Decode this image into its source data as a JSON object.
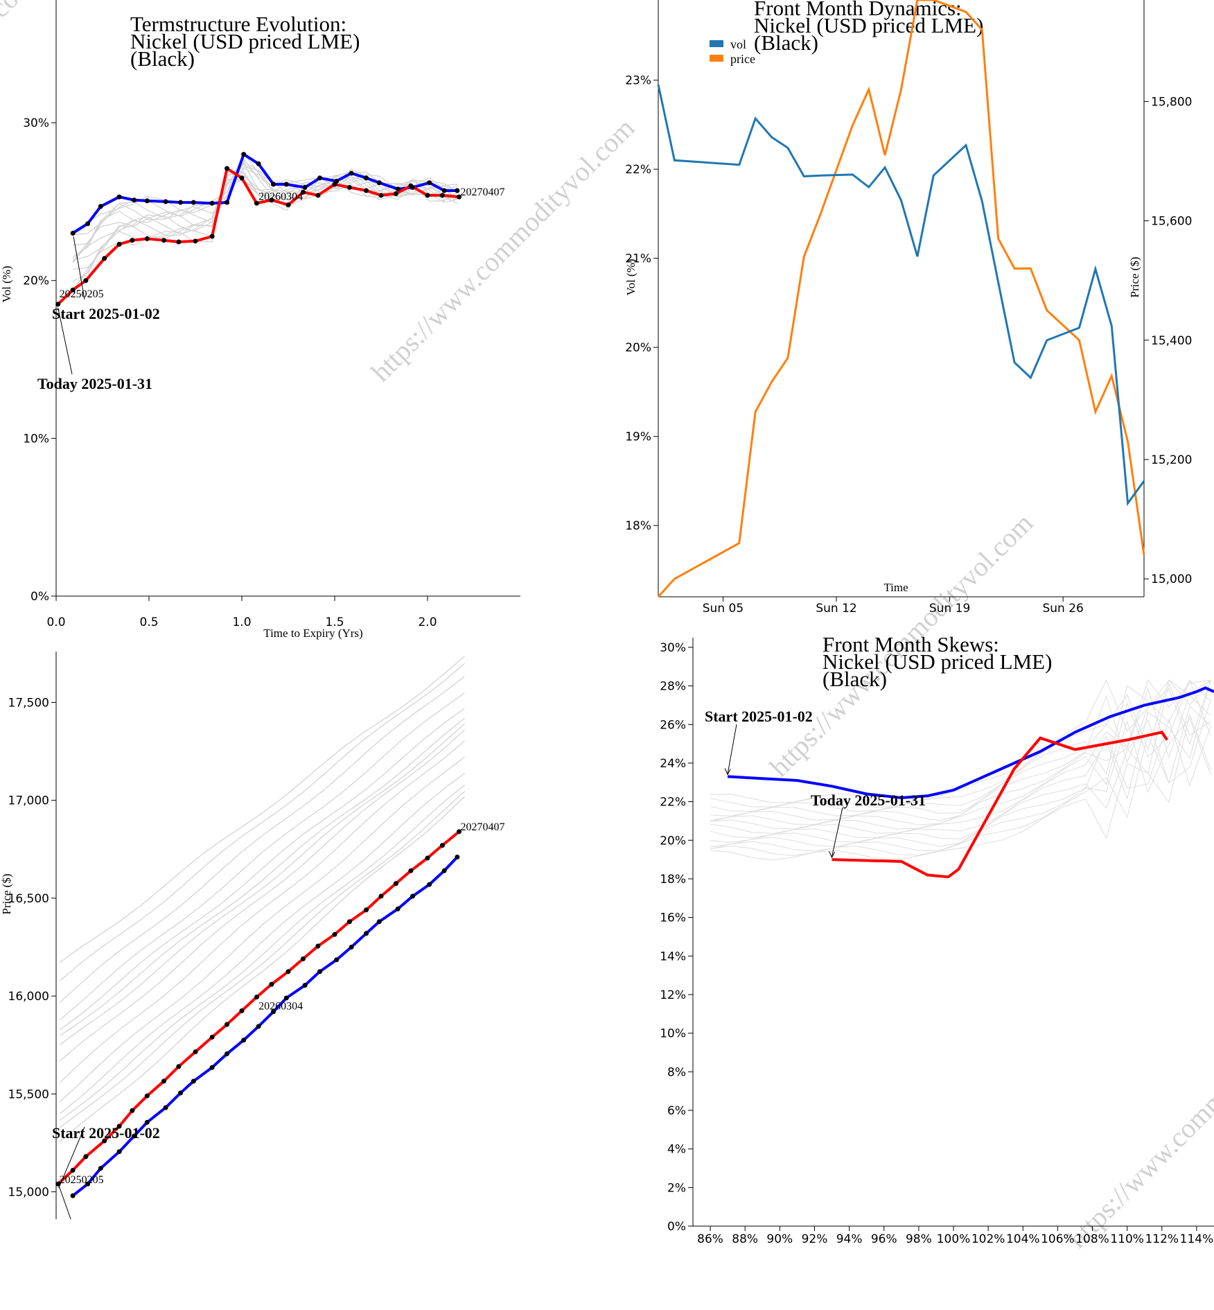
{
  "watermark": "https://www.commodityvol.com",
  "charts": {
    "termstructure": {
      "title": [
        "Termstructure Evolution:",
        "Nickel (USD priced LME)",
        "(Black)"
      ],
      "xlabel": "Time to Expiry (Yrs)",
      "ylabel": "Vol (%)",
      "xlim": [
        0,
        2.5
      ],
      "ylim": [
        0,
        38
      ],
      "xticks": [
        "0.0",
        "0.5",
        "1.0",
        "1.5",
        "2.0"
      ],
      "yticks": [
        "0%",
        "10%",
        "20%",
        "30%"
      ],
      "annotations": {
        "start": "Start 2025-01-02",
        "today": "Today 2025-01-31"
      },
      "expiry_labels": [
        "20250205",
        "20260304",
        "20270407"
      ],
      "colors": {
        "start": "#0000ff",
        "today": "#ff0000",
        "history": "#d3d3d3",
        "marker": "#000000"
      }
    },
    "front_month": {
      "title": [
        "Front Month Dynamics:",
        "Nickel (USD priced LME)",
        "(Black)"
      ],
      "xlabel": "Time",
      "ylabel_left": "Vol (%)",
      "ylabel_right": "Price ($)",
      "xticks": [
        "Sun 05",
        "Sun 12",
        "Sun 19",
        "Sun 26"
      ],
      "yticks_left": [
        "18%",
        "19%",
        "20%",
        "21%",
        "22%",
        "23%"
      ],
      "yticks_right": [
        "15,000",
        "15,200",
        "15,400",
        "15,600",
        "15,800"
      ],
      "legend": [
        "vol",
        "price"
      ],
      "colors": {
        "vol": "#1f77b4",
        "price": "#ff7f0e"
      }
    },
    "price_curve": {
      "ylabel": "Price ($)",
      "yticks": [
        "15,000",
        "15,500",
        "16,000",
        "16,500",
        "17,000",
        "17,500"
      ],
      "annotations": {
        "start": "Start 2025-01-02"
      },
      "expiry_labels": [
        "20250205",
        "20260304",
        "20270407"
      ]
    },
    "skews": {
      "title": [
        "Front Month Skews:",
        "Nickel (USD priced LME)",
        "(Black)"
      ],
      "xticks": [
        "86%",
        "88%",
        "90%",
        "92%",
        "94%",
        "96%",
        "98%",
        "100%",
        "102%",
        "104%",
        "106%",
        "108%",
        "110%",
        "112%",
        "114%"
      ],
      "yticks": [
        "0%",
        "2%",
        "4%",
        "6%",
        "8%",
        "10%",
        "12%",
        "14%",
        "16%",
        "18%",
        "20%",
        "22%",
        "24%",
        "26%",
        "28%",
        "30%"
      ],
      "annotations": {
        "start": "Start 2025-01-02",
        "today": "Today 2025-01-31"
      }
    }
  },
  "chart_data": [
    {
      "type": "line",
      "title": "Termstructure Evolution: Nickel (USD priced LME) (Black)",
      "xlabel": "Time to Expiry (Yrs)",
      "ylabel": "Vol (%)",
      "xlim": [
        0,
        2.5
      ],
      "ylim": [
        0,
        38
      ],
      "series": [
        {
          "name": "Start 2025-01-02",
          "x": [
            0.09,
            0.17,
            0.24,
            0.34,
            0.42,
            0.49,
            0.59,
            0.67,
            0.74,
            0.84,
            0.92,
            1.01,
            1.09,
            1.17,
            1.24,
            1.34,
            1.42,
            1.51,
            1.59,
            1.67,
            1.74,
            1.84,
            1.92,
            2.01,
            2.09,
            2.16
          ],
          "y": [
            23.0,
            23.6,
            24.7,
            25.3,
            25.1,
            25.05,
            25.0,
            24.95,
            24.95,
            24.9,
            24.95,
            28.0,
            27.4,
            26.1,
            26.1,
            25.9,
            26.5,
            26.3,
            26.8,
            26.5,
            26.2,
            25.8,
            25.9,
            26.2,
            25.7,
            25.7
          ]
        },
        {
          "name": "Today 2025-01-31",
          "x": [
            0.01,
            0.09,
            0.16,
            0.26,
            0.34,
            0.41,
            0.49,
            0.58,
            0.66,
            0.75,
            0.84,
            0.92,
            1.0,
            1.08,
            1.16,
            1.25,
            1.33,
            1.41,
            1.5,
            1.58,
            1.67,
            1.75,
            1.83,
            1.91,
            2.0,
            2.08,
            2.17
          ],
          "y": [
            18.5,
            19.4,
            20.0,
            21.4,
            22.3,
            22.55,
            22.65,
            22.55,
            22.45,
            22.5,
            22.8,
            27.1,
            26.5,
            24.9,
            25.1,
            24.8,
            25.6,
            25.4,
            26.1,
            25.9,
            25.7,
            25.4,
            25.5,
            26.0,
            25.4,
            25.4,
            25.3
          ]
        }
      ],
      "expiry_labels": [
        "20250205",
        "20260304",
        "20270407"
      ]
    },
    {
      "type": "line",
      "title": "Front Month Dynamics: Nickel (USD priced LME) (Black)",
      "xlabel": "Time",
      "ylabel": "Vol (%)",
      "ylabel_right": "Price ($)",
      "x": [
        "2025-01-01",
        "2025-01-02",
        "2025-01-06",
        "2025-01-07",
        "2025-01-08",
        "2025-01-09",
        "2025-01-10",
        "2025-01-11",
        "2025-01-13",
        "2025-01-14",
        "2025-01-15",
        "2025-01-16",
        "2025-01-17",
        "2025-01-18",
        "2025-01-20",
        "2025-01-21",
        "2025-01-22",
        "2025-01-23",
        "2025-01-24",
        "2025-01-25",
        "2025-01-27",
        "2025-01-28",
        "2025-01-29",
        "2025-01-30",
        "2025-01-31"
      ],
      "series": [
        {
          "name": "vol",
          "axis": "left",
          "values": [
            22.95,
            22.1,
            22.05,
            22.57,
            22.36,
            22.24,
            21.92,
            21.93,
            21.94,
            21.8,
            22.02,
            21.65,
            21.02,
            21.93,
            22.27,
            21.64,
            20.73,
            19.83,
            19.66,
            20.08,
            20.22,
            20.88,
            20.24,
            18.25,
            18.5
          ]
        },
        {
          "name": "price",
          "axis": "right",
          "values": [
            14970,
            15000,
            15060,
            15280,
            15330,
            15370,
            15540,
            15610,
            15760,
            15820,
            15710,
            15820,
            15970,
            15970,
            15950,
            15920,
            15570,
            15520,
            15520,
            15450,
            15400,
            15280,
            15340,
            15230,
            15040
          ]
        }
      ],
      "ylim_left": [
        17.2,
        23.9
      ],
      "ylim_right": [
        14970,
        15970
      ]
    },
    {
      "type": "line",
      "ylabel": "Price ($)",
      "ylim": [
        14860,
        17760
      ],
      "series": [
        {
          "name": "Start 2025-01-02",
          "x": [
            0.09,
            0.17,
            0.24,
            0.34,
            0.42,
            0.49,
            0.59,
            0.67,
            0.74,
            0.84,
            0.92,
            1.01,
            1.09,
            1.17,
            1.24,
            1.34,
            1.42,
            1.51,
            1.59,
            1.67,
            1.74,
            1.84,
            1.92,
            2.01,
            2.09,
            2.16
          ],
          "y": [
            14980,
            15040,
            15120,
            15205,
            15285,
            15355,
            15430,
            15505,
            15565,
            15635,
            15705,
            15775,
            15845,
            15920,
            15990,
            16055,
            16125,
            16185,
            16250,
            16320,
            16380,
            16445,
            16510,
            16570,
            16640,
            16710
          ]
        },
        {
          "name": "Today 2025-01-31",
          "x": [
            0.01,
            0.09,
            0.16,
            0.26,
            0.34,
            0.41,
            0.49,
            0.58,
            0.66,
            0.75,
            0.84,
            0.92,
            1.0,
            1.08,
            1.16,
            1.25,
            1.33,
            1.41,
            1.5,
            1.58,
            1.67,
            1.75,
            1.83,
            1.91,
            2.0,
            2.08,
            2.17
          ],
          "y": [
            15040,
            15110,
            15180,
            15260,
            15335,
            15415,
            15490,
            15565,
            15640,
            15715,
            15790,
            15855,
            15925,
            15995,
            16060,
            16125,
            16190,
            16255,
            16315,
            16380,
            16440,
            16510,
            16575,
            16640,
            16705,
            16770,
            16840
          ]
        }
      ],
      "expiry_labels": [
        "20250205",
        "20260304",
        "20270407"
      ]
    },
    {
      "type": "line",
      "title": "Front Month Skews: Nickel (USD priced LME) (Black)",
      "xlim": [
        85,
        115
      ],
      "ylim": [
        0,
        30.5
      ],
      "series": [
        {
          "name": "Start 2025-01-02",
          "x": [
            87,
            89,
            91,
            93,
            95,
            97,
            98.5,
            100,
            101,
            103,
            105,
            107,
            109,
            111,
            113,
            114,
            114.5,
            115
          ],
          "y": [
            23.3,
            23.2,
            23.1,
            22.8,
            22.4,
            22.2,
            22.3,
            22.6,
            23.0,
            23.8,
            24.6,
            25.6,
            26.4,
            27.0,
            27.4,
            27.7,
            27.9,
            27.7
          ]
        },
        {
          "name": "Today 2025-01-31",
          "x": [
            93,
            97,
            98.5,
            99.7,
            100.3,
            103.5,
            105,
            107,
            110,
            112,
            112.3
          ],
          "y": [
            19.0,
            18.9,
            18.2,
            18.1,
            18.5,
            23.7,
            25.3,
            24.7,
            25.2,
            25.6,
            25.2
          ]
        }
      ]
    }
  ]
}
